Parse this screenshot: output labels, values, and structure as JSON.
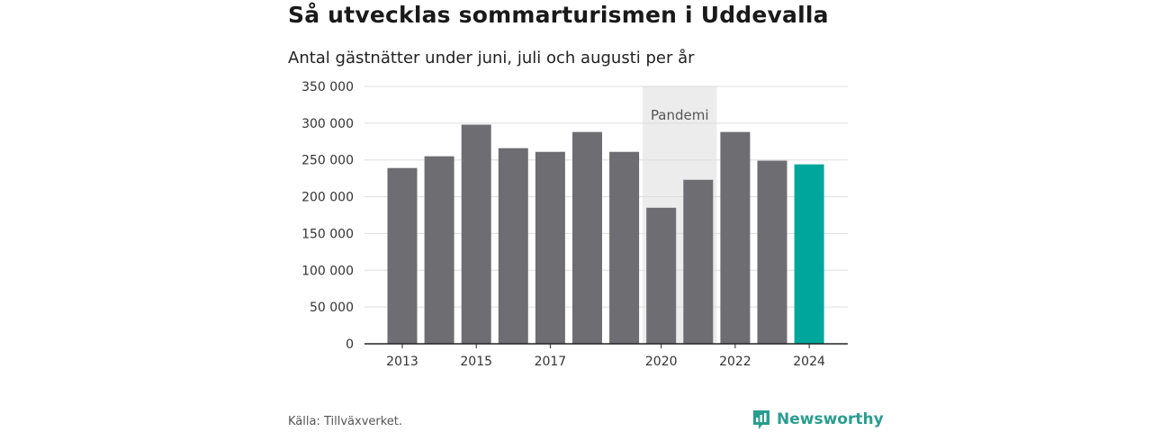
{
  "title": "Så utvecklas sommarturismen i Uddevalla",
  "subtitle": "Antal gästnätter under juni, juli och augusti per år",
  "source": "Källa: Tillväxverket.",
  "brand": "Newsworthy",
  "chart_data": {
    "type": "bar",
    "title": "Så utvecklas sommarturismen i Uddevalla",
    "subtitle": "Antal gästnätter under juni, juli och augusti per år",
    "categories": [
      "2013",
      "2014",
      "2015",
      "2016",
      "2017",
      "2018",
      "2019",
      "2020",
      "2021",
      "2022",
      "2023",
      "2024"
    ],
    "values": [
      239000,
      255000,
      298000,
      266000,
      261000,
      288000,
      261000,
      185000,
      223000,
      288000,
      249000,
      244000
    ],
    "x_tick_labels": [
      "2013",
      "",
      "2015",
      "",
      "2017",
      "",
      "",
      "2020",
      "",
      "2022",
      "",
      "2024"
    ],
    "y_ticks": [
      "0",
      "50 000",
      "100 000",
      "150 000",
      "200 000",
      "250 000",
      "300 000",
      "350 000"
    ],
    "ylim": [
      0,
      350000
    ],
    "grid": true,
    "annotation": {
      "label": "Pandemi",
      "from": "2020",
      "to": "2021"
    },
    "colors": {
      "bar": "#6e6d72",
      "highlight": "#00a69c",
      "shade": "#ececec",
      "grid": "#dddddd",
      "axis": "#222222"
    },
    "highlight_category": "2024"
  }
}
